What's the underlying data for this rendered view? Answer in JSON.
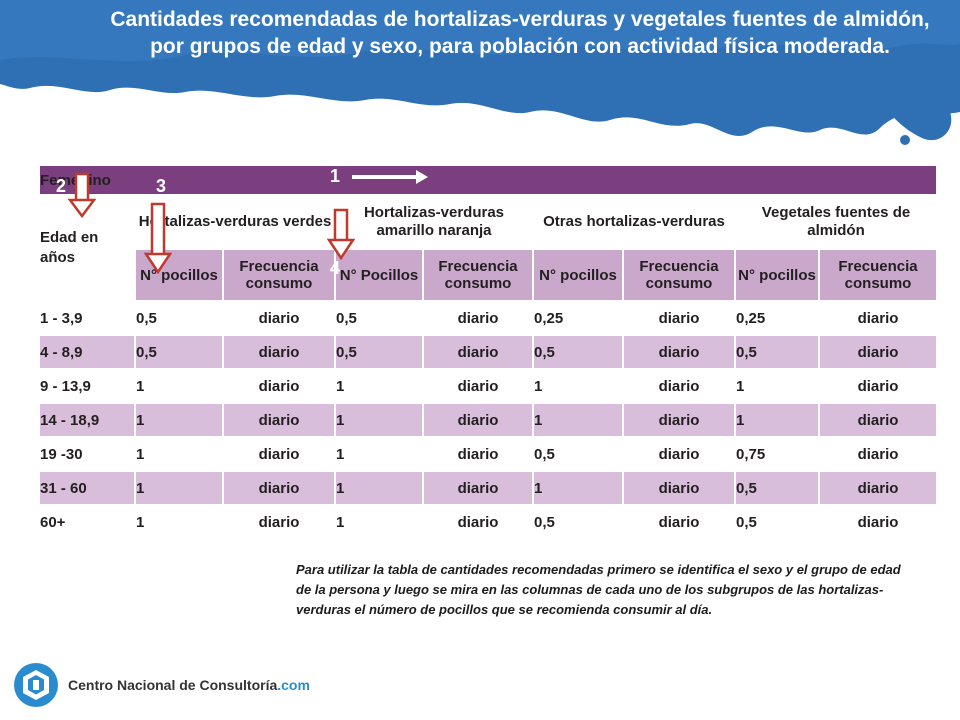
{
  "title": "Cantidades recomendadas de hortalizas-verduras y vegetales fuentes de almidón, por grupos de edad y sexo, para población con actividad física moderada.",
  "table": {
    "sex_label": "Femenino",
    "age_header": "Edad en años",
    "groups": [
      "Hortalizas-verduras verdes",
      "Hortalizas-verduras amarillo naranja",
      "Otras hortalizas-verduras",
      "Vegetales fuentes de almidón"
    ],
    "sub_headers": [
      [
        "N° pocillos",
        "Frecuencia consumo"
      ],
      [
        "N° Pocillos",
        "Frecuencia consumo"
      ],
      [
        "N° pocillos",
        "Frecuencia consumo"
      ],
      [
        "N° pocillos",
        "Frecuencia consumo"
      ]
    ],
    "rows": [
      {
        "age": "1 - 3,9",
        "values": [
          "0,5",
          "diario",
          "0,5",
          "diario",
          "0,25",
          "diario",
          "0,25",
          "diario"
        ]
      },
      {
        "age": "4 - 8,9",
        "values": [
          "0,5",
          "diario",
          "0,5",
          "diario",
          "0,5",
          "diario",
          "0,5",
          "diario"
        ]
      },
      {
        "age": "9 - 13,9",
        "values": [
          "1",
          "diario",
          "1",
          "diario",
          "1",
          "diario",
          "1",
          "diario"
        ]
      },
      {
        "age": "14 - 18,9",
        "values": [
          "1",
          "diario",
          "1",
          "diario",
          "1",
          "diario",
          "1",
          "diario"
        ]
      },
      {
        "age": "19 -30",
        "values": [
          "1",
          "diario",
          "1",
          "diario",
          "0,5",
          "diario",
          "0,75",
          "diario"
        ]
      },
      {
        "age": "31 - 60",
        "values": [
          "1",
          "diario",
          "1",
          "diario",
          "1",
          "diario",
          "0,5",
          "diario"
        ]
      },
      {
        "age": "60+",
        "values": [
          "1",
          "diario",
          "1",
          "diario",
          "0,5",
          "diario",
          "0,5",
          "diario"
        ]
      }
    ]
  },
  "steps": [
    "1",
    "2",
    "3",
    "4"
  ],
  "instructions": "Para utilizar la tabla de cantidades recomendadas primero se identifica el sexo y el grupo de edad de la persona y luego se mira en las columnas de cada uno de los subgrupos de las hortalizas-verduras el número de pocillos que se recomienda consumir al día.",
  "logo": {
    "name": "Centro Nacional de Consultoría",
    "suffix": ".com"
  },
  "colors": {
    "header_blue": "#2f6fb3",
    "sex_band_purple": "#7b3e7e",
    "sub_header_lilac": "#c9a8cc",
    "row_lilac": "#d9bedb",
    "arrow_red": "#c0392b"
  }
}
